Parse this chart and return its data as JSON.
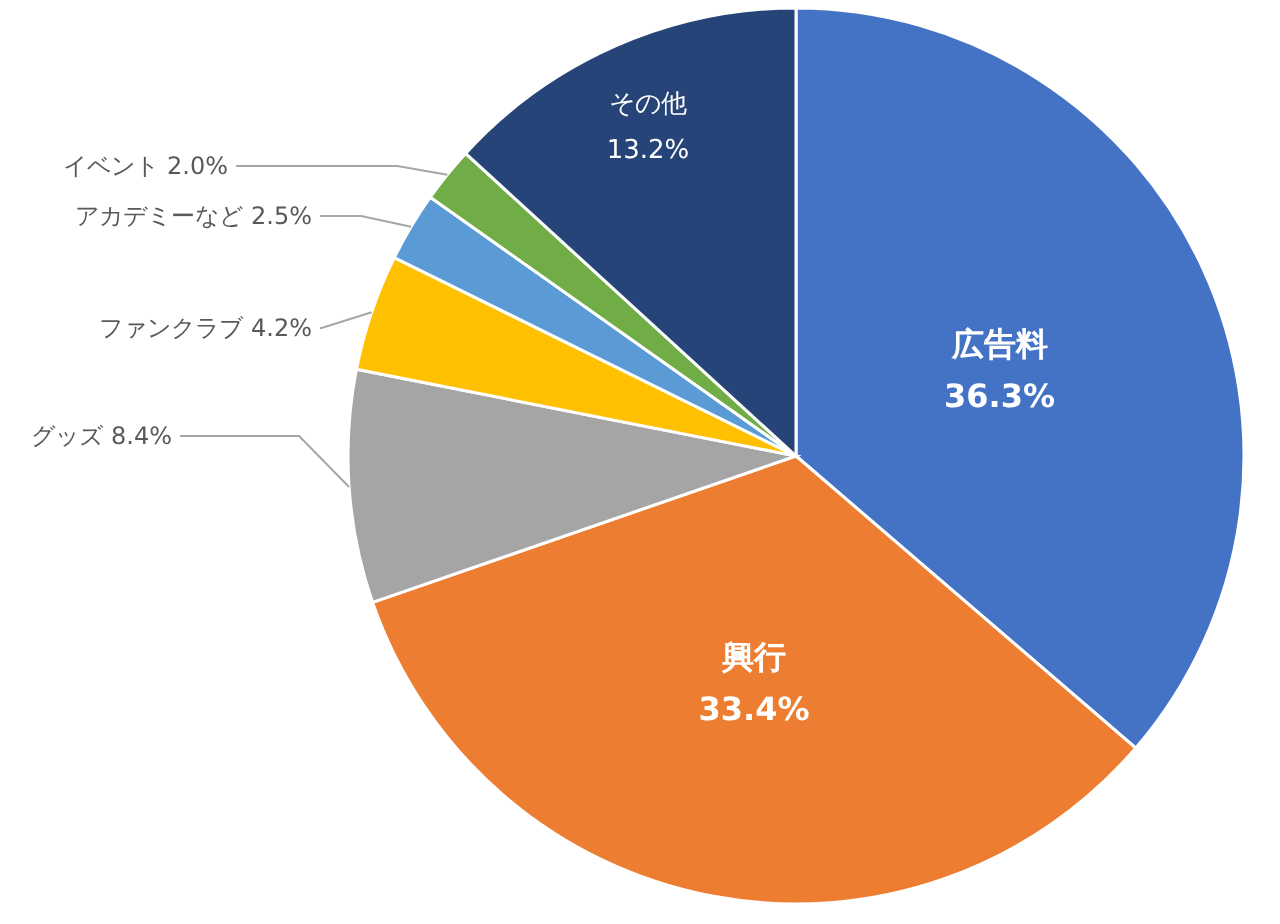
{
  "chart_data": {
    "type": "pie",
    "categories": [
      "広告料",
      "興行",
      "グッズ",
      "ファンクラブ",
      "アカデミーなど",
      "イベント",
      "その他"
    ],
    "values": [
      36.3,
      33.4,
      8.4,
      4.2,
      2.5,
      2.0,
      13.2
    ],
    "value_labels": [
      "36.3%",
      "33.4%",
      "8.4%",
      "4.2%",
      "2.5%",
      "2.0%",
      "13.2%"
    ],
    "colors": [
      "#4472c4",
      "#ed7d31",
      "#a5a5a5",
      "#ffc000",
      "#5b9bd5",
      "#70ad47",
      "#264478"
    ],
    "data_labels": true,
    "legend": false
  }
}
